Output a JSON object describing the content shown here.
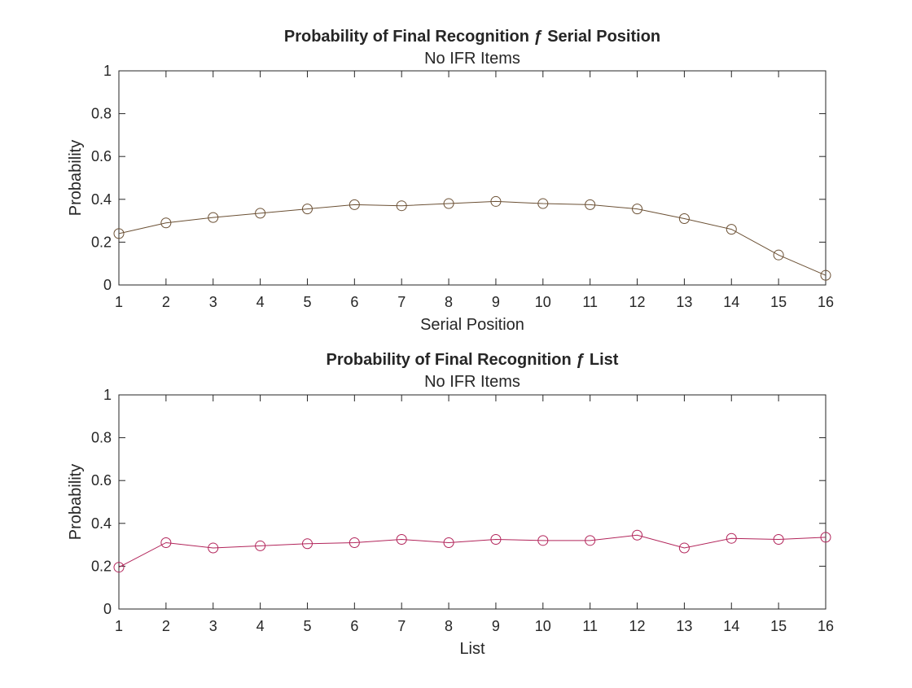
{
  "chart_data": [
    {
      "type": "line",
      "title": "Probability of Final Recognition ƒ Serial Position",
      "subtitle": "No IFR Items",
      "xlabel": "Serial Position",
      "ylabel": "Probability",
      "xlim": [
        1,
        16
      ],
      "ylim": [
        0,
        1
      ],
      "xticks": [
        1,
        2,
        3,
        4,
        5,
        6,
        7,
        8,
        9,
        10,
        11,
        12,
        13,
        14,
        15,
        16
      ],
      "yticks": [
        0,
        0.2,
        0.4,
        0.6,
        0.8,
        1
      ],
      "ytick_labels": [
        "0",
        "0.2",
        "0.4",
        "0.6",
        "0.8",
        "1"
      ],
      "grid": false,
      "marker": "circle",
      "color": "#6b5034",
      "x": [
        1,
        2,
        3,
        4,
        5,
        6,
        7,
        8,
        9,
        10,
        11,
        12,
        13,
        14,
        15,
        16
      ],
      "y": [
        0.24,
        0.29,
        0.315,
        0.335,
        0.355,
        0.375,
        0.37,
        0.38,
        0.39,
        0.38,
        0.375,
        0.355,
        0.31,
        0.26,
        0.14,
        0.045
      ]
    },
    {
      "type": "line",
      "title": "Probability of Final Recognition ƒ List",
      "subtitle": "No IFR Items",
      "xlabel": "List",
      "ylabel": "Probability",
      "xlim": [
        1,
        16
      ],
      "ylim": [
        0,
        1
      ],
      "xticks": [
        1,
        2,
        3,
        4,
        5,
        6,
        7,
        8,
        9,
        10,
        11,
        12,
        13,
        14,
        15,
        16
      ],
      "yticks": [
        0,
        0.2,
        0.4,
        0.6,
        0.8,
        1
      ],
      "ytick_labels": [
        "0",
        "0.2",
        "0.4",
        "0.6",
        "0.8",
        "1"
      ],
      "grid": false,
      "marker": "circle",
      "color": "#b2245a",
      "x": [
        1,
        2,
        3,
        4,
        5,
        6,
        7,
        8,
        9,
        10,
        11,
        12,
        13,
        14,
        15,
        16
      ],
      "y": [
        0.195,
        0.31,
        0.285,
        0.295,
        0.305,
        0.31,
        0.325,
        0.31,
        0.325,
        0.32,
        0.32,
        0.345,
        0.285,
        0.33,
        0.325,
        0.335
      ]
    }
  ]
}
